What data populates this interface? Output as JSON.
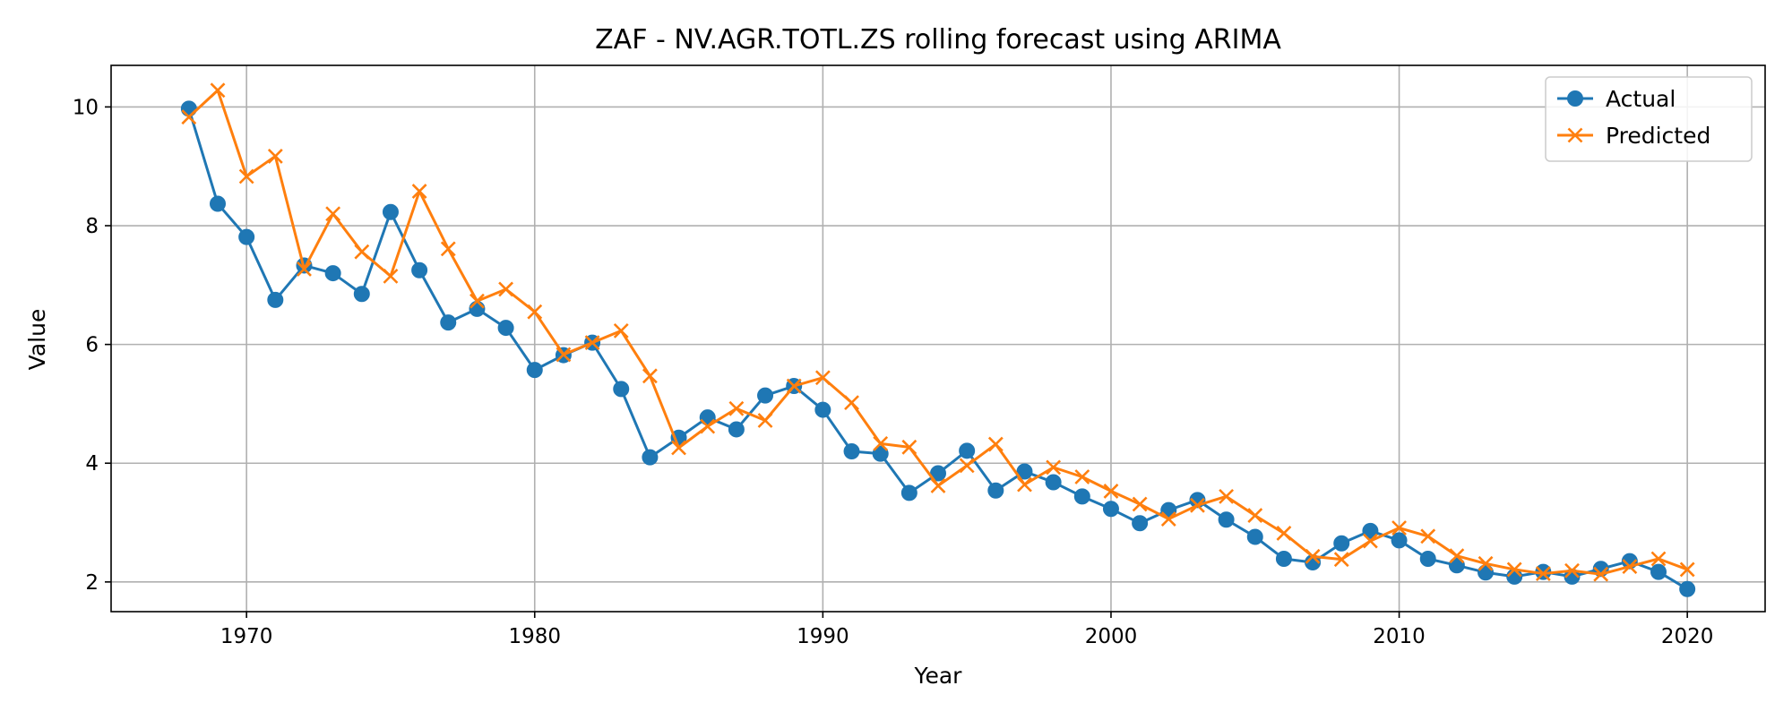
{
  "chart_data": {
    "type": "line",
    "title": "ZAF - NV.AGR.TOTL.ZS rolling forecast using ARIMA",
    "xlabel": "Year",
    "ylabel": "Value",
    "xlim": [
      1965.3,
      2022.7
    ],
    "ylim": [
      1.5,
      10.7
    ],
    "xticks": [
      1970,
      1980,
      1990,
      2000,
      2010,
      2020
    ],
    "yticks": [
      2,
      4,
      6,
      8,
      10
    ],
    "grid": true,
    "legend_position": "top-right",
    "x": [
      1968,
      1969,
      1970,
      1971,
      1972,
      1973,
      1974,
      1975,
      1976,
      1977,
      1978,
      1979,
      1980,
      1981,
      1982,
      1983,
      1984,
      1985,
      1986,
      1987,
      1988,
      1989,
      1990,
      1991,
      1992,
      1993,
      1994,
      1995,
      1996,
      1997,
      1998,
      1999,
      2000,
      2001,
      2002,
      2003,
      2004,
      2005,
      2006,
      2007,
      2008,
      2009,
      2010,
      2011,
      2012,
      2013,
      2014,
      2015,
      2016,
      2017,
      2018,
      2019,
      2020
    ],
    "series": [
      {
        "name": "Actual",
        "color": "#1f77b4",
        "marker": "circle",
        "values": [
          9.97,
          8.37,
          7.81,
          6.75,
          7.33,
          7.2,
          6.85,
          8.23,
          7.25,
          6.37,
          6.6,
          6.28,
          5.57,
          5.82,
          6.03,
          5.25,
          4.1,
          4.43,
          4.77,
          4.57,
          5.14,
          5.3,
          4.9,
          4.2,
          4.16,
          3.5,
          3.83,
          4.21,
          3.54,
          3.86,
          3.68,
          3.44,
          3.23,
          2.99,
          3.21,
          3.38,
          3.05,
          2.76,
          2.39,
          2.33,
          2.65,
          2.86,
          2.7,
          2.39,
          2.28,
          2.16,
          2.09,
          2.17,
          2.09,
          2.22,
          2.35,
          2.17,
          1.88
        ]
      },
      {
        "name": "Predicted",
        "color": "#ff7f0e",
        "marker": "x",
        "values": [
          9.83,
          10.28,
          8.83,
          9.17,
          7.27,
          8.2,
          7.56,
          7.15,
          8.58,
          7.61,
          6.73,
          6.93,
          6.55,
          5.83,
          6.03,
          6.23,
          5.47,
          4.26,
          4.62,
          4.92,
          4.72,
          5.3,
          5.44,
          5.02,
          4.33,
          4.27,
          3.62,
          3.96,
          4.32,
          3.64,
          3.93,
          3.77,
          3.53,
          3.31,
          3.06,
          3.29,
          3.44,
          3.12,
          2.82,
          2.43,
          2.38,
          2.69,
          2.91,
          2.77,
          2.44,
          2.31,
          2.21,
          2.14,
          2.19,
          2.13,
          2.26,
          2.39,
          2.21
        ]
      }
    ]
  }
}
